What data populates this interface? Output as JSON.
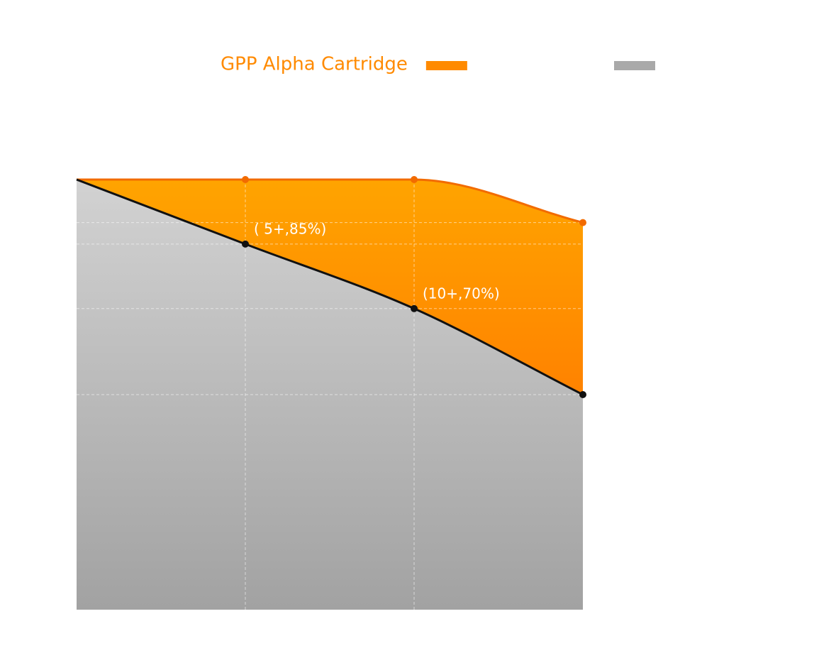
{
  "chart_data": {
    "type": "area",
    "x": [
      0,
      5,
      10,
      15
    ],
    "xlim": [
      0,
      15
    ],
    "ylim": [
      0,
      100
    ],
    "grid": true,
    "series": [
      {
        "name": "GPP Alpha Cartridge",
        "color": "#ff8a00",
        "values": [
          100,
          100,
          100,
          90
        ]
      },
      {
        "color": "#a9a9a9",
        "values": [
          100,
          85,
          70,
          50
        ],
        "value_labels": [
          null,
          "( 5+,85%)",
          "(10+,70%)",
          null
        ]
      }
    ]
  }
}
